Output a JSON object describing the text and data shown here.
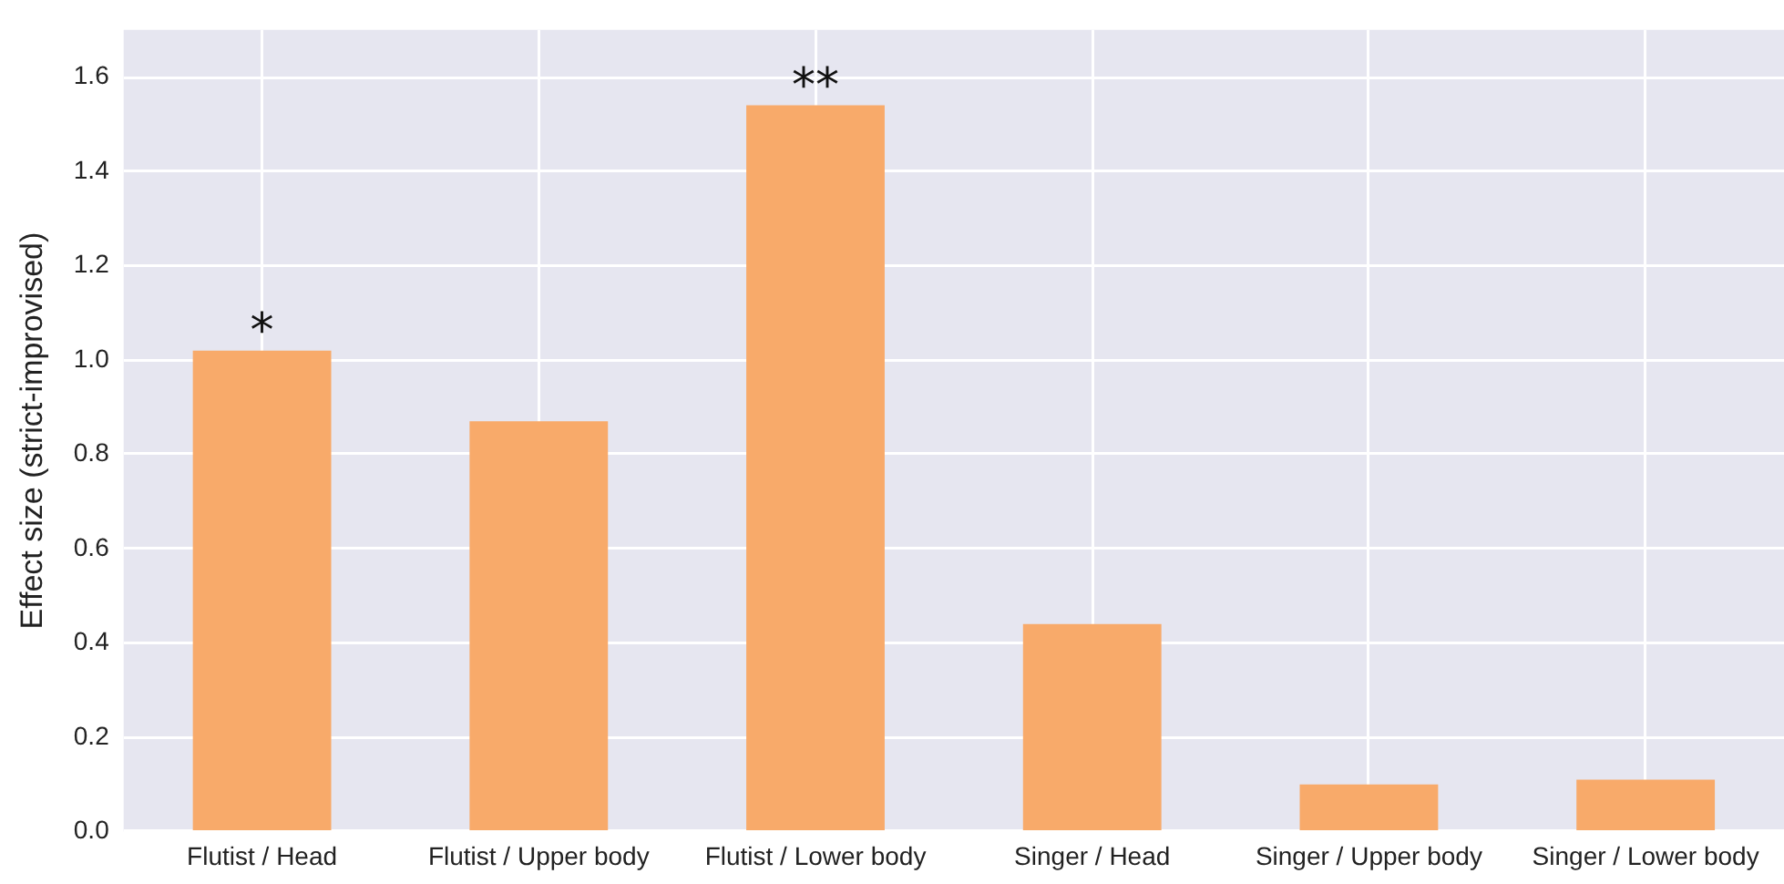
{
  "chart_data": {
    "type": "bar",
    "ylabel": "Effect size (strict-improvised)",
    "categories": [
      "Flutist / Head",
      "Flutist / Upper body",
      "Flutist / Lower body",
      "Singer / Head",
      "Singer / Upper body",
      "Singer / Lower body"
    ],
    "values": [
      1.02,
      0.87,
      1.54,
      0.44,
      0.1,
      0.11
    ],
    "color": "#f8aa6a",
    "ylim": [
      0,
      1.7
    ],
    "yticks": [
      {
        "value": 0,
        "label": "0.0"
      },
      {
        "value": 0.2,
        "label": "0.2"
      },
      {
        "value": 0.4,
        "label": "0.4"
      },
      {
        "value": 0.6,
        "label": "0.6"
      },
      {
        "value": 0.8,
        "label": "0.8"
      },
      {
        "value": 1,
        "label": "1.0"
      },
      {
        "value": 1.2,
        "label": "1.2"
      },
      {
        "value": 1.4,
        "label": "1.4"
      },
      {
        "value": 1.6,
        "label": "1.6"
      }
    ],
    "grid": true,
    "legend": false,
    "annotations": [
      {
        "text": "*",
        "x": "Flutist / Head",
        "y": 1.02
      },
      {
        "text": "**",
        "x": "Flutist / Lower body",
        "y": 1.54
      }
    ]
  }
}
